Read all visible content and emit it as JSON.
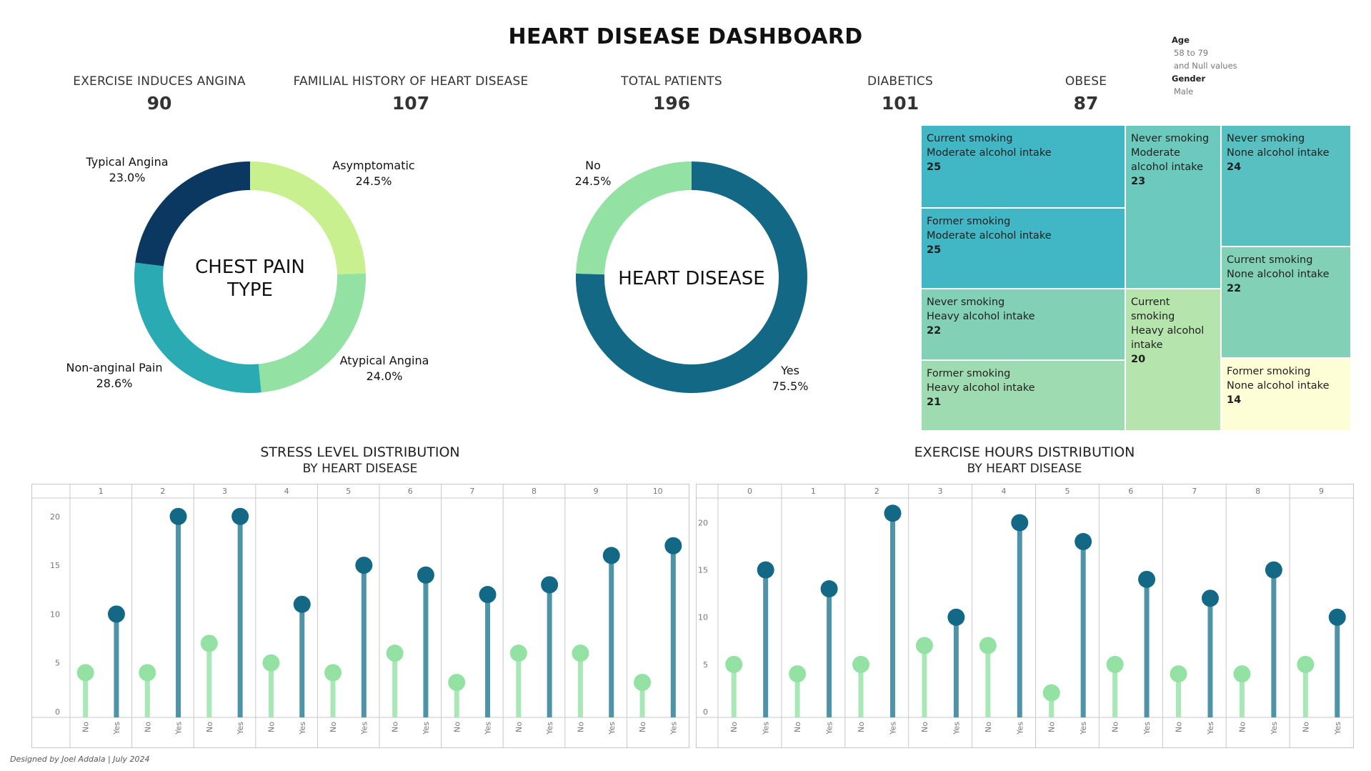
{
  "title": "HEART DISEASE DASHBOARD",
  "filters": {
    "age_label": "Age",
    "age_value_1": "58 to 79",
    "age_value_2": "and Null values",
    "gender_label": "Gender",
    "gender_value": "Male"
  },
  "kpis": [
    {
      "label": "EXERCISE INDUCES ANGINA",
      "value": "90"
    },
    {
      "label": "FAMILIAL HISTORY OF HEART DISEASE",
      "value": "107"
    },
    {
      "label": "TOTAL PATIENTS",
      "value": "196"
    },
    {
      "label": "DIABETICS",
      "value": "101"
    },
    {
      "label": "OBESE",
      "value": "87"
    }
  ],
  "colors": {
    "navy": "#0b3860",
    "teal_dark": "#136985",
    "teal": "#2aaab3",
    "mint": "#93e2a4",
    "lime": "#c8f08f",
    "lollipop_no": "#93e2a4",
    "lollipop_yes": "#136985"
  },
  "footer": "Designed by Joel Addala | July 2024",
  "chart_data": [
    {
      "id": "chest-pain",
      "type": "pie",
      "center_label": [
        "CHEST PAIN",
        "TYPE"
      ],
      "slices": [
        {
          "label": "Asymptomatic",
          "pct": "24.5%",
          "value": 24.5,
          "color": "#c8f08f"
        },
        {
          "label": "Atypical Angina",
          "pct": "24.0%",
          "value": 24.0,
          "color": "#93e2a4"
        },
        {
          "label": "Non-anginal Pain",
          "pct": "28.6%",
          "value": 28.6,
          "color": "#2aaab3"
        },
        {
          "label": "Typical Angina",
          "pct": "23.0%",
          "value": 23.0,
          "color": "#0b3860"
        }
      ]
    },
    {
      "id": "heart-disease",
      "type": "pie",
      "center_label": [
        "HEART DISEASE"
      ],
      "slices": [
        {
          "label": "Yes",
          "pct": "75.5%",
          "value": 75.5,
          "color": "#136985"
        },
        {
          "label": "No",
          "pct": "24.5%",
          "value": 24.5,
          "color": "#93e2a4"
        }
      ]
    },
    {
      "id": "treemap",
      "type": "treemap",
      "cells": [
        {
          "lines": [
            "Current smoking",
            "Moderate alcohol intake"
          ],
          "value": 25,
          "color": "#41b6c4"
        },
        {
          "lines": [
            "Former smoking",
            "Moderate alcohol intake"
          ],
          "value": 25,
          "color": "#41b6c4"
        },
        {
          "lines": [
            "Never smoking",
            "Moderate",
            "alcohol intake"
          ],
          "value": 23,
          "color": "#6cc9bd"
        },
        {
          "lines": [
            "Never smoking",
            "None alcohol intake"
          ],
          "value": 24,
          "color": "#58c0c0"
        },
        {
          "lines": [
            "Current smoking",
            "None alcohol intake"
          ],
          "value": 22,
          "color": "#82d1b7"
        },
        {
          "lines": [
            "Never smoking",
            "Heavy alcohol intake"
          ],
          "value": 22,
          "color": "#82d1b7"
        },
        {
          "lines": [
            "Former smoking",
            "Heavy alcohol intake"
          ],
          "value": 21,
          "color": "#9fdbb0"
        },
        {
          "lines": [
            "Current",
            "smoking",
            "Heavy alcohol",
            "intake"
          ],
          "value": 20,
          "color": "#b6e4ad"
        },
        {
          "lines": [
            "Former smoking",
            "None alcohol intake"
          ],
          "value": 14,
          "color": "#fdfed5"
        }
      ]
    },
    {
      "id": "stress",
      "type": "lollipop",
      "title": "STRESS LEVEL DISTRIBUTION",
      "subtitle": "BY HEART DISEASE",
      "categories": [
        "1",
        "2",
        "3",
        "4",
        "5",
        "6",
        "7",
        "8",
        "9",
        "10"
      ],
      "sub_labels": [
        "No",
        "Yes"
      ],
      "yticks": [
        0,
        5,
        10,
        15,
        20
      ],
      "ylim": [
        0,
        21.3
      ],
      "series": [
        {
          "name": "No",
          "values": [
            4,
            4,
            7,
            5,
            4,
            6,
            3,
            6,
            6,
            3
          ]
        },
        {
          "name": "Yes",
          "values": [
            10,
            20,
            20,
            11,
            15,
            14,
            12,
            13,
            16,
            17
          ]
        }
      ]
    },
    {
      "id": "exercise",
      "type": "lollipop",
      "title": "EXERCISE HOURS DISTRIBUTION",
      "subtitle": "BY HEART DISEASE",
      "categories": [
        "0",
        "1",
        "2",
        "3",
        "4",
        "5",
        "6",
        "7",
        "8",
        "9"
      ],
      "sub_labels": [
        "No",
        "Yes"
      ],
      "yticks": [
        0,
        5,
        10,
        15,
        20
      ],
      "ylim": [
        0,
        22
      ],
      "series": [
        {
          "name": "No",
          "values": [
            5,
            4,
            5,
            7,
            7,
            2,
            5,
            4,
            4,
            5
          ]
        },
        {
          "name": "Yes",
          "values": [
            15,
            13,
            21,
            10,
            20,
            18,
            14,
            12,
            15,
            10
          ]
        }
      ]
    }
  ]
}
